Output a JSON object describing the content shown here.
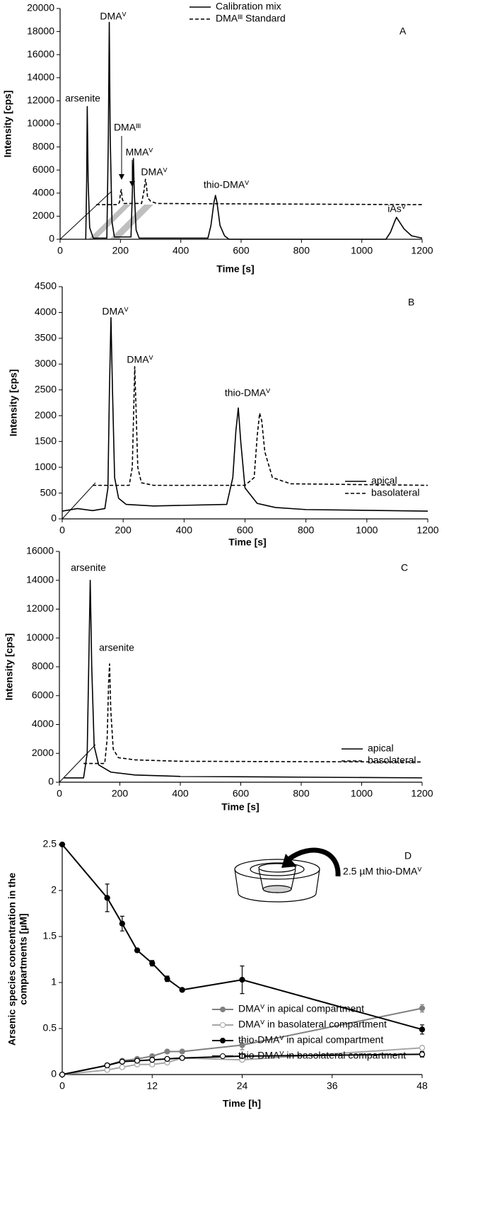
{
  "chart_data": [
    {
      "type": "line",
      "panel": "A",
      "xlabel": "Time [s]",
      "ylabel": "Intensity [cps]",
      "xlim": [
        0,
        1200
      ],
      "xticks": [
        0,
        200,
        400,
        600,
        800,
        1000,
        1200
      ],
      "ylim": [
        0,
        20000
      ],
      "yticks": [
        0,
        2000,
        4000,
        6000,
        8000,
        10000,
        12000,
        14000,
        16000,
        18000,
        20000
      ],
      "legend": "top",
      "series": [
        {
          "name": "Calibration mix",
          "color": "#000000",
          "style": "solid",
          "x": [
            85,
            88,
            90,
            93,
            98,
            110,
            155,
            160,
            163,
            166,
            172,
            180,
            235,
            240,
            243,
            246,
            252,
            262,
            490,
            500,
            510,
            515,
            520,
            530,
            545,
            560,
            1080,
            1095,
            1110,
            1115,
            1120,
            1140,
            1165,
            1200
          ],
          "values": [
            0,
            5000,
            11500,
            5000,
            1000,
            100,
            100,
            9000,
            18800,
            9000,
            1500,
            200,
            200,
            4500,
            7000,
            4000,
            800,
            100,
            100,
            1200,
            3200,
            3800,
            3200,
            1200,
            300,
            0,
            0,
            600,
            1600,
            1900,
            1700,
            900,
            300,
            100
          ]
        },
        {
          "name": "DMAᴵᴵᴵ Standard",
          "color": "#000000",
          "style": "dashed",
          "x": [
            120,
            190,
            197,
            200,
            203,
            206,
            212,
            270,
            278,
            283,
            286,
            290,
            300,
            320,
            1200
          ],
          "values": [
            3000,
            3000,
            3200,
            4000,
            4300,
            3500,
            3100,
            3100,
            4200,
            5200,
            4700,
            3600,
            3300,
            3100,
            3000
          ]
        }
      ],
      "annotations": [
        "arsenite",
        "DMAⱽ",
        "DMAᴵᴵᴵ",
        "MMAⱽ",
        "DMAⱽ",
        "thio-DMAⱽ",
        "iAsⱽ"
      ]
    },
    {
      "type": "line",
      "panel": "B",
      "xlabel": "Time [s]",
      "ylabel": "Intensity [cps]",
      "xlim": [
        0,
        1200
      ],
      "xticks": [
        0,
        200,
        400,
        600,
        800,
        1000,
        1200
      ],
      "ylim": [
        0,
        4500
      ],
      "yticks": [
        0,
        500,
        1000,
        1500,
        2000,
        2500,
        3000,
        3500,
        4000,
        4500
      ],
      "legend": "right",
      "series": [
        {
          "name": "apical",
          "color": "#000000",
          "style": "solid",
          "x": [
            0,
            50,
            100,
            140,
            150,
            155,
            160,
            165,
            172,
            185,
            210,
            300,
            540,
            560,
            570,
            578,
            586,
            600,
            640,
            700,
            800,
            1200
          ],
          "values": [
            150,
            200,
            160,
            200,
            600,
            2500,
            3900,
            2500,
            800,
            400,
            280,
            250,
            280,
            800,
            1700,
            2150,
            1500,
            600,
            300,
            220,
            180,
            150
          ]
        },
        {
          "name": "basolateral",
          "color": "#000000",
          "style": "dashed",
          "x": [
            100,
            220,
            230,
            235,
            238,
            242,
            248,
            260,
            300,
            600,
            630,
            640,
            648,
            655,
            665,
            690,
            750,
            1200
          ],
          "values": [
            650,
            650,
            1000,
            2200,
            2950,
            2200,
            1000,
            700,
            650,
            650,
            800,
            1600,
            2050,
            1900,
            1300,
            800,
            680,
            650
          ]
        }
      ],
      "annotations": [
        "DMAⱽ",
        "DMAⱽ",
        "thio-DMAⱽ"
      ]
    },
    {
      "type": "line",
      "panel": "C",
      "xlabel": "Time [s]",
      "ylabel": "Intensity [cps]",
      "xlim": [
        0,
        1200
      ],
      "xticks": [
        0,
        200,
        400,
        600,
        800,
        1000,
        1200
      ],
      "ylim": [
        0,
        16000
      ],
      "yticks": [
        0,
        2000,
        4000,
        6000,
        8000,
        10000,
        12000,
        14000,
        16000
      ],
      "legend": "right",
      "series": [
        {
          "name": "apical",
          "color": "#000000",
          "style": "solid",
          "x": [
            15,
            80,
            92,
            97,
            102,
            107,
            115,
            130,
            170,
            250,
            400,
            800,
            1200
          ],
          "values": [
            300,
            300,
            2000,
            8000,
            14000,
            8000,
            2500,
            1200,
            700,
            500,
            400,
            350,
            300
          ]
        },
        {
          "name": "basolateral",
          "color": "#000000",
          "style": "dashed",
          "x": [
            80,
            150,
            158,
            163,
            166,
            170,
            178,
            195,
            250,
            400,
            1200
          ],
          "values": [
            1300,
            1300,
            3000,
            7000,
            8200,
            5000,
            2300,
            1700,
            1550,
            1450,
            1400
          ]
        }
      ],
      "annotations": [
        "arsenite",
        "arsenite"
      ]
    },
    {
      "type": "line",
      "panel": "D",
      "xlabel": "Time [h]",
      "ylabel": [
        "Arsenic species concentration in the",
        "compartments [µM]"
      ],
      "xlim": [
        0,
        48
      ],
      "xticks": [
        0,
        12,
        24,
        36,
        48
      ],
      "ylim": [
        0,
        2.5
      ],
      "yticks": [
        0,
        0.5,
        1,
        1.5,
        2,
        2.5
      ],
      "legend": "right",
      "x": [
        0,
        6,
        8,
        10,
        12,
        14,
        16,
        24,
        48
      ],
      "series": [
        {
          "name": "DMAⱽ in apical compartment",
          "color": "#808080",
          "marker": "filled",
          "values": [
            0,
            0.1,
            0.15,
            0.17,
            0.2,
            0.25,
            0.25,
            0.32,
            0.72
          ],
          "errors": [
            0,
            0.02,
            0.02,
            0.01,
            0.01,
            0.01,
            0.01,
            0.05,
            0.04
          ]
        },
        {
          "name": "DMAⱽ in basolateral compartment",
          "color": "#a6a6a6",
          "marker": "hollow",
          "values": [
            0,
            0.05,
            0.08,
            0.11,
            0.11,
            0.13,
            0.18,
            0.16,
            0.29
          ],
          "errors": [
            0,
            0.01,
            0.01,
            0.01,
            0.01,
            0.01,
            0.01,
            0.02,
            0.02
          ]
        },
        {
          "name": "thio-DMAⱽ in apical compartment",
          "color": "#000000",
          "marker": "filled",
          "values": [
            2.5,
            1.92,
            1.64,
            1.35,
            1.21,
            1.04,
            0.92,
            1.03,
            0.49
          ],
          "errors": [
            0,
            0.15,
            0.08,
            0.02,
            0.03,
            0.03,
            0.01,
            0.15,
            0.05
          ]
        },
        {
          "name": "thio-DMAⱽ in basolateral compartment",
          "color": "#000000",
          "marker": "hollow",
          "values": [
            0,
            0.1,
            0.14,
            0.15,
            0.16,
            0.17,
            0.18,
            0.2,
            0.22
          ],
          "errors": [
            0,
            0.02,
            0.02,
            0.01,
            0.01,
            0.01,
            0.01,
            0.02,
            0.03
          ]
        }
      ],
      "annotations": [
        "2.5 µM thio-DMAⱽ"
      ]
    }
  ]
}
